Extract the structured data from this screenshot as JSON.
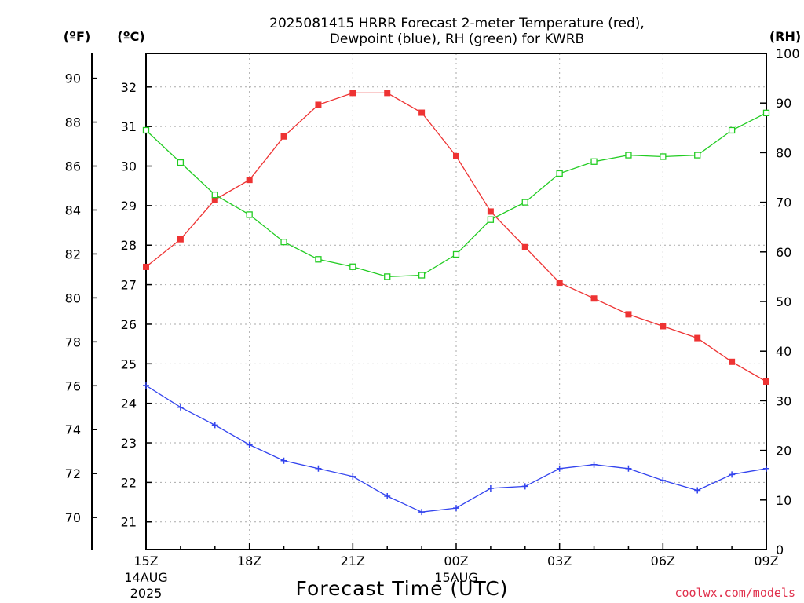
{
  "chart_data": {
    "type": "line",
    "title": "2025081415 HRRR Forecast 2-meter Temperature (red),",
    "subtitle": "Dewpoint (blue), RH (green) for KWRB",
    "xlabel": "Forecast Time (UTC)",
    "units": {
      "fahrenheit": "(ºF)",
      "celsius": "(ºC)",
      "rh": "(RH)"
    },
    "credit": "coolwx.com/models",
    "credit_color": "#e0304c",
    "x_hours": [
      0,
      1,
      2,
      3,
      4,
      5,
      6,
      7,
      8,
      9,
      10,
      11,
      12,
      13,
      14,
      15,
      16,
      17,
      18
    ],
    "x_ticks": [
      {
        "hour": 0,
        "label": "15Z",
        "day": "14AUG",
        "year": "2025"
      },
      {
        "hour": 3,
        "label": "18Z"
      },
      {
        "hour": 6,
        "label": "21Z"
      },
      {
        "hour": 9,
        "label": "00Z",
        "day": "15AUG"
      },
      {
        "hour": 12,
        "label": "03Z"
      },
      {
        "hour": 15,
        "label": "06Z"
      },
      {
        "hour": 18,
        "label": "09Z"
      }
    ],
    "ylim_c": [
      20.3,
      32.85
    ],
    "yticks_c": [
      21,
      22,
      23,
      24,
      25,
      26,
      27,
      28,
      29,
      30,
      31,
      32
    ],
    "yticks_f": [
      70,
      72,
      74,
      76,
      78,
      80,
      82,
      84,
      86,
      88,
      90
    ],
    "ylim_rh": [
      0,
      100
    ],
    "yticks_rh": [
      0,
      10,
      20,
      30,
      40,
      50,
      60,
      70,
      80,
      90,
      100
    ],
    "grid": true,
    "series": [
      {
        "name": "Temperature",
        "axis": "c",
        "color": "#ee3333",
        "marker": "square-filled",
        "values": [
          27.45,
          28.15,
          29.15,
          29.65,
          30.75,
          31.55,
          31.85,
          31.85,
          31.35,
          30.25,
          28.85,
          27.95,
          27.05,
          26.65,
          26.25,
          25.95,
          25.65,
          25.05,
          24.55
        ]
      },
      {
        "name": "Dewpoint",
        "axis": "c",
        "color": "#3344ee",
        "marker": "plus",
        "values": [
          24.45,
          23.9,
          23.45,
          22.95,
          22.55,
          22.35,
          22.15,
          21.65,
          21.25,
          21.35,
          21.85,
          21.9,
          22.35,
          22.45,
          22.35,
          22.05,
          21.8,
          22.2,
          22.35
        ]
      },
      {
        "name": "RH",
        "axis": "rh",
        "color": "#22cc22",
        "marker": "square-open",
        "values": [
          84.5,
          78,
          71.5,
          67.5,
          62,
          58.5,
          57,
          55,
          55.3,
          59.5,
          66.5,
          70,
          75.8,
          78.2,
          79.5,
          79.2,
          79.5,
          84.5,
          88
        ]
      }
    ]
  }
}
